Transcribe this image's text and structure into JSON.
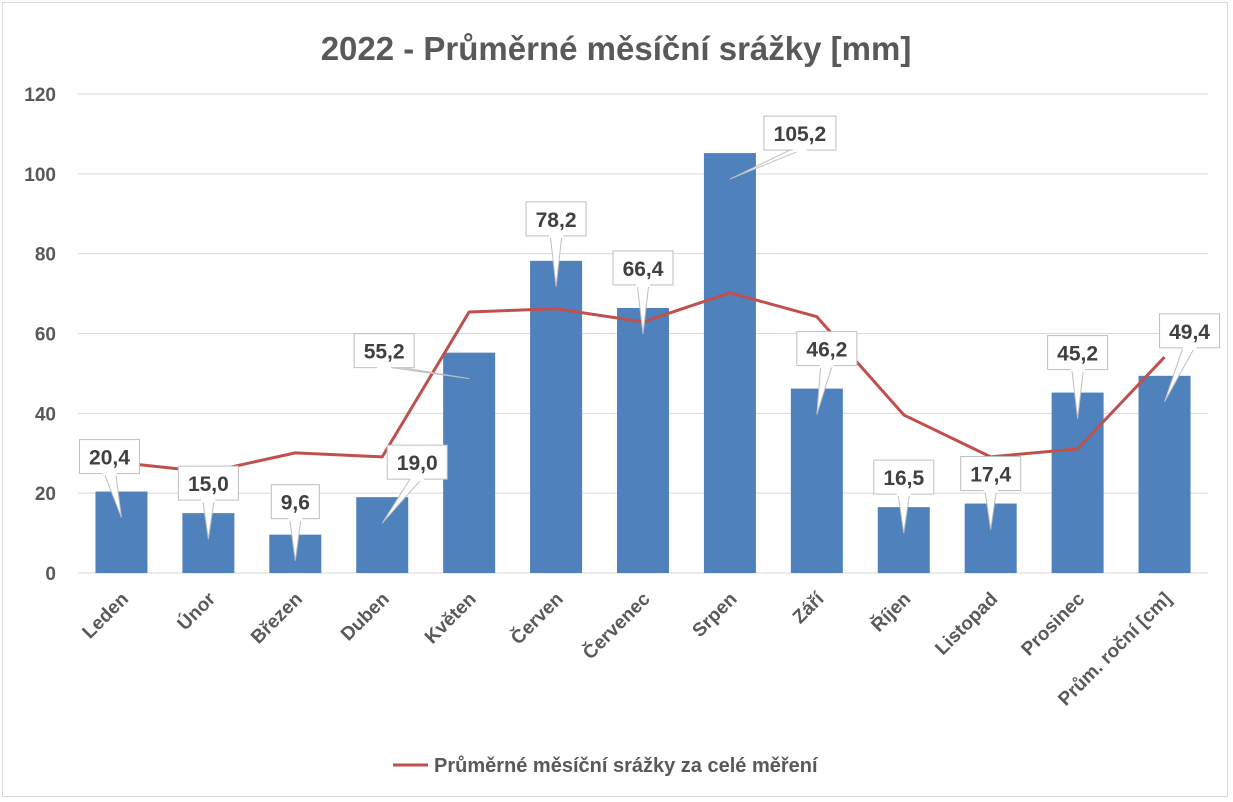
{
  "chart_data": {
    "type": "bar",
    "title": "2022 - Průměrné měsíční srážky [mm]",
    "xlabel": "",
    "ylabel": "",
    "ylim": [
      0,
      120
    ],
    "yticks": [
      0,
      20,
      40,
      60,
      80,
      100,
      120
    ],
    "grid": true,
    "categories": [
      "Leden",
      "Únor",
      "Březen",
      "Duben",
      "Květen",
      "Červen",
      "Červenec",
      "Srpen",
      "Září",
      "Říjen",
      "Listopad",
      "Prosinec",
      "Prům. roční [cm]"
    ],
    "values": [
      20.4,
      15.0,
      9.6,
      19.0,
      55.2,
      78.2,
      66.4,
      105.2,
      46.2,
      16.5,
      17.4,
      45.2,
      49.4
    ],
    "value_labels": [
      "20,4",
      "15,0",
      "9,6",
      "19,0",
      "55,2",
      "78,2",
      "66,4",
      "105,2",
      "46,2",
      "16,5",
      "17,4",
      "45,2",
      "49,4"
    ],
    "line_series": {
      "name": "Průměrné měsíční srážky za celé měření",
      "values": [
        27.6,
        25.3,
        30.1,
        29.1,
        65.4,
        66.2,
        62.9,
        70.2,
        64.2,
        39.6,
        29.1,
        31.1,
        54.1
      ]
    },
    "legend": "bottom",
    "colors": {
      "bar": "#4f81bd",
      "line": "#c0504d",
      "grid": "#d9d9d9",
      "text": "#595959"
    }
  }
}
